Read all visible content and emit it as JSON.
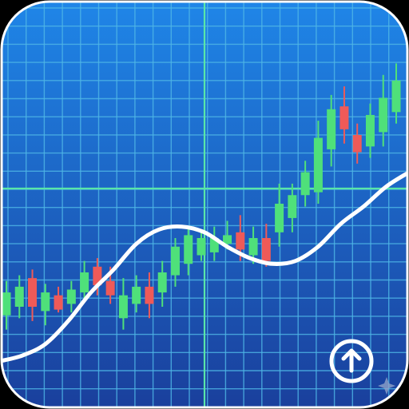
{
  "app_icon": {
    "name_icon": "stock-candlestick-chart-app-icon",
    "colors": {
      "background_top": "#1f86e8",
      "background_bottom": "#1a3f9c",
      "grid_minor": "#4fb7e6",
      "grid_major": "#59e6a8",
      "bull_candle": "#4fe07a",
      "bear_candle": "#ef5a58",
      "trend_line": "#ffffff",
      "button_ring": "#ffffff"
    },
    "chart_data": {
      "type": "candlestick",
      "candles": [
        {
          "open": 42,
          "close": 58,
          "high": 66,
          "low": 32
        },
        {
          "open": 48,
          "close": 62,
          "high": 70,
          "low": 40
        },
        {
          "open": 68,
          "close": 48,
          "high": 74,
          "low": 38
        },
        {
          "open": 45,
          "close": 58,
          "high": 64,
          "low": 35
        },
        {
          "open": 56,
          "close": 46,
          "high": 62,
          "low": 44
        },
        {
          "open": 50,
          "close": 60,
          "high": 66,
          "low": 44
        },
        {
          "open": 58,
          "close": 72,
          "high": 80,
          "low": 52
        },
        {
          "open": 76,
          "close": 63,
          "high": 82,
          "low": 56
        },
        {
          "open": 66,
          "close": 56,
          "high": 76,
          "low": 50
        },
        {
          "open": 40,
          "close": 56,
          "high": 68,
          "low": 32
        },
        {
          "open": 50,
          "close": 62,
          "high": 70,
          "low": 44
        },
        {
          "open": 62,
          "close": 50,
          "high": 72,
          "low": 40
        },
        {
          "open": 58,
          "close": 72,
          "high": 80,
          "low": 48
        },
        {
          "open": 70,
          "close": 90,
          "high": 96,
          "low": 62
        },
        {
          "open": 78,
          "close": 98,
          "high": 104,
          "low": 70
        },
        {
          "open": 84,
          "close": 96,
          "high": 100,
          "low": 80
        },
        {
          "open": 86,
          "close": 96,
          "high": 104,
          "low": 80
        },
        {
          "open": 92,
          "close": 98,
          "high": 108,
          "low": 88
        },
        {
          "open": 100,
          "close": 88,
          "high": 112,
          "low": 80
        },
        {
          "open": 84,
          "close": 96,
          "high": 104,
          "low": 78
        },
        {
          "open": 96,
          "close": 80,
          "high": 106,
          "low": 76
        },
        {
          "open": 100,
          "close": 120,
          "high": 134,
          "low": 90
        },
        {
          "open": 110,
          "close": 126,
          "high": 134,
          "low": 100
        },
        {
          "open": 126,
          "close": 142,
          "high": 150,
          "low": 118
        },
        {
          "open": 128,
          "close": 166,
          "high": 178,
          "low": 120
        },
        {
          "open": 158,
          "close": 186,
          "high": 196,
          "low": 146
        },
        {
          "open": 188,
          "close": 172,
          "high": 202,
          "low": 162
        },
        {
          "open": 168,
          "close": 156,
          "high": 176,
          "low": 148
        },
        {
          "open": 160,
          "close": 182,
          "high": 190,
          "low": 152
        },
        {
          "open": 170,
          "close": 194,
          "high": 210,
          "low": 160
        },
        {
          "open": 184,
          "close": 206,
          "high": 218,
          "low": 176
        }
      ],
      "trend": [
        10,
        14,
        22,
        38,
        58,
        74,
        92,
        102,
        104,
        100,
        90,
        82,
        78,
        80,
        90,
        106,
        118,
        132,
        142
      ],
      "ylim": [
        0,
        240
      ],
      "grid": true
    },
    "scroll_up_icon": "arrow-up-circle-icon",
    "sparkle_icon": "sparkle-icon"
  }
}
